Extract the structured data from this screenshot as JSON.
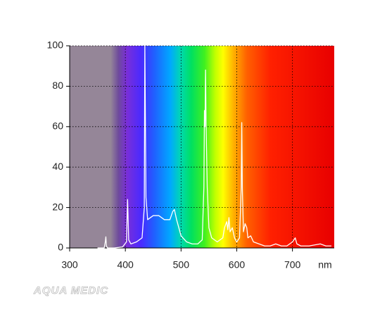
{
  "chart_data": {
    "type": "line",
    "x": [
      350,
      362,
      364,
      365,
      366,
      368,
      380,
      395,
      402,
      404,
      406,
      410,
      420,
      430,
      434,
      435,
      437,
      440,
      450,
      460,
      470,
      480,
      485,
      488,
      492,
      500,
      510,
      520,
      530,
      538,
      541,
      542,
      543,
      544,
      545,
      547,
      550,
      555,
      565,
      575,
      578,
      582,
      584,
      586,
      588,
      592,
      596,
      600,
      605,
      608,
      609,
      610,
      612,
      615,
      618,
      620,
      625,
      630,
      640,
      650,
      660,
      670,
      680,
      690,
      700,
      705,
      708,
      715,
      730,
      750,
      760,
      770
    ],
    "values": [
      0,
      0,
      3,
      5.5,
      1,
      0,
      0,
      0.5,
      3,
      24,
      4,
      2,
      3,
      5,
      20,
      100,
      25,
      14,
      16,
      16,
      14,
      14,
      18,
      19,
      14,
      6,
      3,
      2,
      2,
      4,
      30,
      68,
      60,
      88,
      60,
      30,
      10,
      5,
      3,
      5,
      10,
      13,
      9,
      15,
      8,
      10,
      5,
      3,
      5,
      30,
      62,
      30,
      8,
      12,
      10,
      5,
      6,
      3,
      2,
      1,
      1,
      2,
      1,
      1,
      3,
      5,
      2,
      1,
      1,
      2,
      1,
      1
    ],
    "color": "#ffffff",
    "xlim": [
      300,
      775
    ],
    "xticks": [
      300,
      400,
      500,
      600,
      700
    ],
    "ylim": [
      0,
      100
    ],
    "yticks": [
      0,
      20,
      40,
      60,
      80,
      100
    ],
    "x_label": "nm",
    "grid": true,
    "watermark": "AQUA MEDIC"
  }
}
